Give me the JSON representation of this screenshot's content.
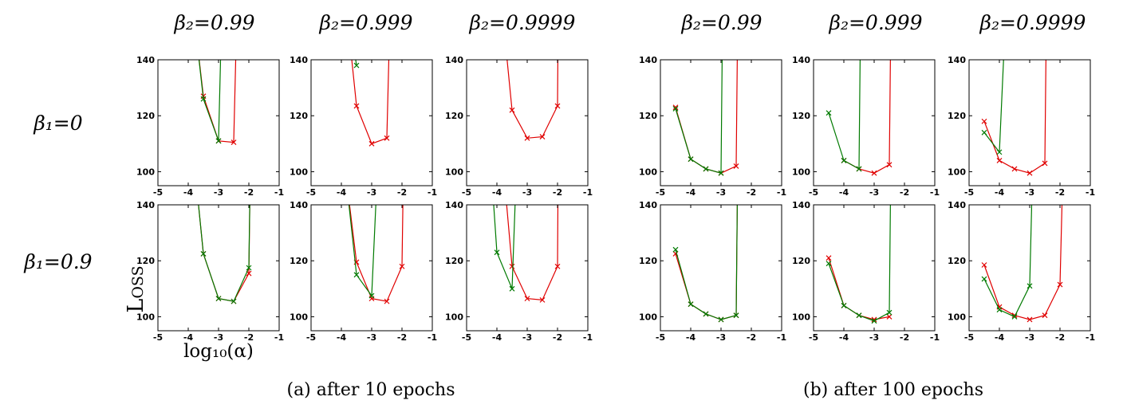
{
  "column_titles": [
    "β₂=0.99",
    "β₂=0.999",
    "β₂=0.9999",
    "β₂=0.99",
    "β₂=0.999",
    "β₂=0.9999"
  ],
  "row_titles": [
    "β₁=0",
    "β₁=0.9"
  ],
  "ylabel": "Loss",
  "xlabel": "log₁₀(α)",
  "captions": [
    "(a) after 10 epochs",
    "(b) after 100 epochs"
  ],
  "colors": {
    "red": "#e00000",
    "green": "#007a00"
  },
  "chart_data": {
    "type": "line",
    "xlim": [
      -5,
      -1
    ],
    "ylim": [
      95,
      140
    ],
    "xticks": [
      -5,
      -4,
      -3,
      -2,
      -1
    ],
    "yticks": [
      100,
      120,
      140
    ],
    "panels": [
      {
        "group": "after 10 epochs",
        "beta1": "0",
        "beta2": "0.99",
        "series": [
          {
            "color": "red",
            "x": [
              -3.8,
              -3.5,
              -3.0,
              -2.5,
              -2.4
            ],
            "y": [
              155,
              127,
              111,
              110.5,
              155
            ]
          },
          {
            "color": "green",
            "x": [
              -3.8,
              -3.5,
              -3.0,
              -2.9
            ],
            "y": [
              155,
              126,
              111,
              155
            ]
          }
        ]
      },
      {
        "group": "after 10 epochs",
        "beta1": "0",
        "beta2": "0.999",
        "series": [
          {
            "color": "red",
            "x": [
              -3.8,
              -3.5,
              -3.0,
              -2.5,
              -2.4
            ],
            "y": [
              155,
              123.5,
              110,
              112,
              155
            ]
          },
          {
            "color": "green",
            "x": [
              -3.6,
              -3.5
            ],
            "y": [
              145,
              138
            ]
          }
        ]
      },
      {
        "group": "after 10 epochs",
        "beta1": "0",
        "beta2": "0.9999",
        "series": [
          {
            "color": "red",
            "x": [
              -3.8,
              -3.5,
              -3.0,
              -2.5,
              -2.0,
              -1.98
            ],
            "y": [
              155,
              122,
              112,
              112.5,
              123.5,
              155
            ]
          }
        ]
      },
      {
        "group": "after 100 epochs",
        "beta1": "0",
        "beta2": "0.99",
        "series": [
          {
            "color": "red",
            "x": [
              -4.5,
              -4.0,
              -3.5,
              -3.0,
              -2.5,
              -2.45
            ],
            "y": [
              123,
              104.5,
              101,
              99.5,
              102,
              155
            ]
          },
          {
            "color": "green",
            "x": [
              -4.5,
              -4.0,
              -3.5,
              -3.0,
              -2.95
            ],
            "y": [
              122.5,
              104.5,
              101,
              99.5,
              155
            ]
          }
        ]
      },
      {
        "group": "after 100 epochs",
        "beta1": "0",
        "beta2": "0.999",
        "series": [
          {
            "color": "red",
            "x": [
              -4.0,
              -3.5,
              -3.0,
              -2.5,
              -2.45
            ],
            "y": [
              104,
              101,
              99.5,
              102.5,
              155
            ]
          },
          {
            "color": "green",
            "x": [
              -4.5,
              -4.0,
              -3.5,
              -3.45
            ],
            "y": [
              121,
              104,
              101,
              155
            ]
          }
        ]
      },
      {
        "group": "after 100 epochs",
        "beta1": "0",
        "beta2": "0.9999",
        "series": [
          {
            "color": "red",
            "x": [
              -4.5,
              -4.0,
              -3.5,
              -3.0,
              -2.5,
              -2.45
            ],
            "y": [
              118,
              104,
              101,
              99.5,
              103,
              155
            ]
          },
          {
            "color": "green",
            "x": [
              -4.5,
              -4.0,
              -3.8
            ],
            "y": [
              114,
              107,
              155
            ]
          }
        ]
      },
      {
        "group": "after 10 epochs",
        "beta1": "0.9",
        "beta2": "0.99",
        "series": [
          {
            "color": "red",
            "x": [
              -3.8,
              -3.5,
              -3.0,
              -2.5,
              -2.0,
              -1.95
            ],
            "y": [
              155,
              122.5,
              106.5,
              105.5,
              115.5,
              155
            ]
          },
          {
            "color": "green",
            "x": [
              -3.8,
              -3.5,
              -3.0,
              -2.5,
              -2.0,
              -1.95
            ],
            "y": [
              155,
              122.5,
              106.5,
              105.5,
              117.5,
              155
            ]
          }
        ]
      },
      {
        "group": "after 10 epochs",
        "beta1": "0.9",
        "beta2": "0.999",
        "series": [
          {
            "color": "red",
            "x": [
              -3.9,
              -3.5,
              -3.0,
              -2.5,
              -2.0,
              -1.95
            ],
            "y": [
              155,
              119.5,
              106.5,
              105.5,
              118,
              155
            ]
          },
          {
            "color": "green",
            "x": [
              -3.9,
              -3.5,
              -3.0,
              -2.8
            ],
            "y": [
              155,
              115,
              107.5,
              155
            ]
          }
        ]
      },
      {
        "group": "after 10 epochs",
        "beta1": "0.9",
        "beta2": "0.9999",
        "series": [
          {
            "color": "red",
            "x": [
              -3.8,
              -3.5,
              -3.0,
              -2.5,
              -2.0,
              -1.98
            ],
            "y": [
              155,
              118,
              106.5,
              106,
              118,
              155
            ]
          },
          {
            "color": "green",
            "x": [
              -4.2,
              -4.0,
              -3.5,
              -3.35
            ],
            "y": [
              155,
              123,
              110,
              155
            ]
          }
        ]
      },
      {
        "group": "after 100 epochs",
        "beta1": "0.9",
        "beta2": "0.99",
        "series": [
          {
            "color": "red",
            "x": [
              -4.5,
              -4.0,
              -3.5,
              -3.0,
              -2.5,
              -2.45
            ],
            "y": [
              122.5,
              104.5,
              101,
              99,
              100.5,
              155
            ]
          },
          {
            "color": "green",
            "x": [
              -4.5,
              -4.0,
              -3.5,
              -3.0,
              -2.5,
              -2.45
            ],
            "y": [
              124,
              104.5,
              101,
              99,
              100.5,
              155
            ]
          }
        ]
      },
      {
        "group": "after 100 epochs",
        "beta1": "0.9",
        "beta2": "0.999",
        "series": [
          {
            "color": "red",
            "x": [
              -4.5,
              -4.0,
              -3.5,
              -3.0,
              -2.5
            ],
            "y": [
              121,
              104,
              100.5,
              99,
              100
            ]
          },
          {
            "color": "green",
            "x": [
              -4.5,
              -4.0,
              -3.5,
              -3.0,
              -2.5,
              -2.45
            ],
            "y": [
              119,
              104,
              100.5,
              98.5,
              101.5,
              155
            ]
          }
        ]
      },
      {
        "group": "after 100 epochs",
        "beta1": "0.9",
        "beta2": "0.9999",
        "series": [
          {
            "color": "red",
            "x": [
              -4.5,
              -4.0,
              -3.5,
              -3.0,
              -2.5,
              -2.0,
              -1.9
            ],
            "y": [
              118.5,
              103.5,
              100.5,
              99,
              100.5,
              111.5,
              155
            ]
          },
          {
            "color": "green",
            "x": [
              -4.5,
              -4.0,
              -3.5,
              -3.0,
              -2.9
            ],
            "y": [
              113.5,
              102.5,
              100,
              111,
              155
            ]
          }
        ]
      }
    ]
  }
}
